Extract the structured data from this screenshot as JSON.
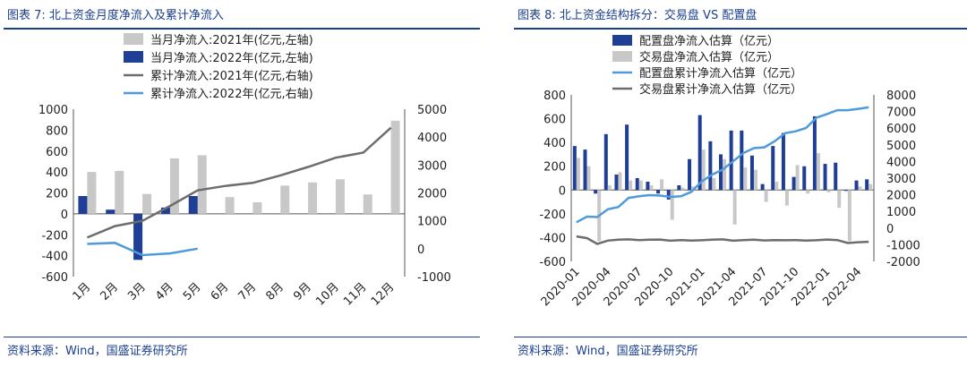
{
  "panels": [
    {
      "title": "图表 7:  北上资金月度净流入及累计净流入",
      "source": "资料来源：Wind，国盛证券研究所"
    },
    {
      "title": "图表 8:  北上资金结构拆分：交易盘 VS 配置盘",
      "source": "资料来源：Wind，国盛证券研究所"
    }
  ],
  "colors": {
    "navy": "#1f3e96",
    "gray": "#c8c8c8",
    "darkgray": "#6d6d6d",
    "lightblue": "#4f9ad9",
    "accent": "#1a3f8f"
  },
  "chart_data": [
    {
      "type": "bar",
      "title": "北上资金月度净流入及累计净流入",
      "categories": [
        "1月",
        "2月",
        "3月",
        "4月",
        "5月",
        "6月",
        "7月",
        "8月",
        "9月",
        "10月",
        "11月",
        "12月"
      ],
      "legend_position": "top-right",
      "grid": false,
      "y_left": {
        "ticks": [
          1000,
          800,
          600,
          400,
          200,
          0,
          -200,
          -400,
          -600
        ],
        "range": [
          -600,
          1000
        ]
      },
      "y_right": {
        "ticks": [
          5000,
          4000,
          3000,
          2000,
          1000,
          0,
          -1000
        ],
        "range": [
          -1000,
          5000
        ]
      },
      "series": [
        {
          "name": "当月净流入:2021年(亿元,左轴)",
          "type": "bar",
          "axis": "left",
          "color": "#c8c8c8",
          "values": [
            400,
            410,
            190,
            530,
            560,
            160,
            110,
            270,
            300,
            330,
            185,
            890
          ]
        },
        {
          "name": "当月净流入:2022年(亿元,左轴)",
          "type": "bar",
          "axis": "left",
          "color": "#1f3e96",
          "values": [
            170,
            40,
            -440,
            60,
            170,
            null,
            null,
            null,
            null,
            null,
            null,
            null
          ]
        },
        {
          "name": "累计净流入:2021年(亿元,右轴)",
          "type": "line",
          "axis": "right",
          "color": "#6d6d6d",
          "values": [
            400,
            810,
            1000,
            1530,
            2090,
            2250,
            2360,
            2630,
            2930,
            3260,
            3445,
            4335
          ]
        },
        {
          "name": "累计净流入:2022年(亿元,右轴)",
          "type": "line",
          "axis": "right",
          "color": "#4f9ad9",
          "values": [
            170,
            210,
            -230,
            -170,
            0,
            null,
            null,
            null,
            null,
            null,
            null,
            null
          ]
        }
      ]
    },
    {
      "type": "bar",
      "title": "北上资金结构拆分：交易盘 VS 配置盘",
      "x_tick_labels": [
        "2020-01",
        "2020-04",
        "2020-07",
        "2020-10",
        "2021-01",
        "2021-04",
        "2021-07",
        "2021-10",
        "2022-01",
        "2022-04"
      ],
      "x_tick_index": [
        0,
        3,
        6,
        9,
        12,
        15,
        18,
        21,
        24,
        27
      ],
      "legend_position": "top-center",
      "grid": false,
      "y_left": {
        "ticks": [
          800,
          600,
          400,
          200,
          0,
          -200,
          -400,
          -600
        ],
        "range": [
          -600,
          800
        ]
      },
      "y_right": {
        "ticks": [
          8000,
          7000,
          6000,
          5000,
          4000,
          3000,
          2000,
          1000,
          0,
          -1000,
          -2000
        ],
        "range": [
          -2000,
          8000
        ]
      },
      "series": [
        {
          "name": "配置盘净流入估算（亿元）",
          "type": "bar",
          "axis": "left",
          "color": "#1f3e96",
          "values": [
            370,
            340,
            -30,
            470,
            130,
            550,
            100,
            70,
            -30,
            -80,
            40,
            260,
            630,
            410,
            300,
            500,
            500,
            290,
            50,
            370,
            480,
            110,
            200,
            620,
            220,
            230,
            0,
            80,
            90
          ]
        },
        {
          "name": "交易盘净流入估算（亿元）",
          "type": "bar",
          "axis": "left",
          "color": "#c8c8c8",
          "values": [
            270,
            200,
            -430,
            40,
            150,
            80,
            80,
            40,
            90,
            -250,
            20,
            30,
            340,
            100,
            260,
            -290,
            190,
            170,
            -100,
            70,
            -130,
            210,
            -30,
            310,
            -20,
            -150,
            -430,
            30,
            50
          ]
        },
        {
          "name": "配置盘累计净流入估算（亿元）",
          "type": "line",
          "axis": "right",
          "color": "#4f9ad9",
          "values": [
            350,
            690,
            660,
            1130,
            1260,
            1810,
            1910,
            1980,
            1950,
            1870,
            1910,
            2170,
            2800,
            3210,
            3510,
            4010,
            4510,
            4800,
            4850,
            5220,
            5700,
            5810,
            6010,
            6630,
            6850,
            7080,
            7080,
            7160,
            7250
          ]
        },
        {
          "name": "交易盘累计净流入估算（亿元）",
          "type": "line",
          "axis": "right",
          "color": "#6d6d6d",
          "values": [
            -500,
            -600,
            -950,
            -750,
            -700,
            -680,
            -720,
            -700,
            -690,
            -760,
            -720,
            -750,
            -730,
            -700,
            -680,
            -760,
            -720,
            -700,
            -740,
            -720,
            -730,
            -720,
            -750,
            -730,
            -690,
            -720,
            -900,
            -850,
            -820
          ]
        }
      ]
    }
  ]
}
